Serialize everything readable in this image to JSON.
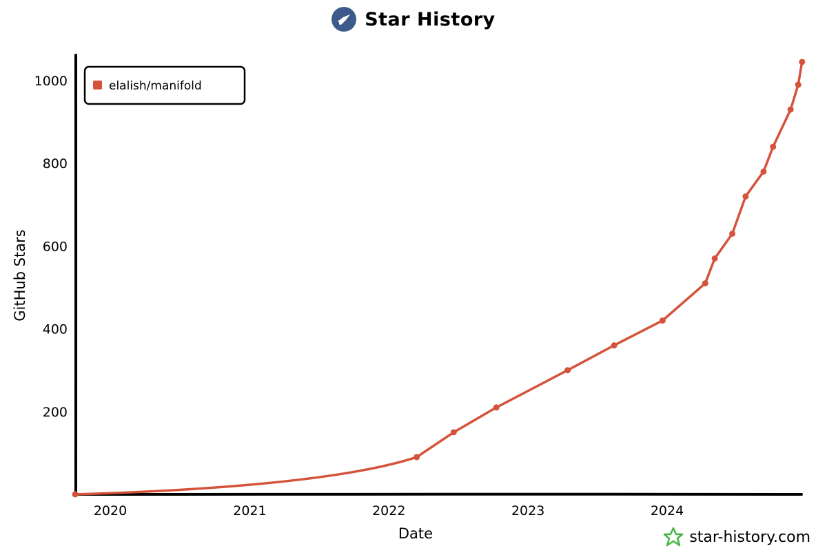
{
  "header": {
    "title": "Star History"
  },
  "watermark": {
    "text": "star-history.com"
  },
  "colors": {
    "series": "#d4533a",
    "axis": "#000000",
    "logo_bg": "#3c5a8a",
    "watermark_icon": "#44b544"
  },
  "icons": {
    "title_logo": "star-history-logo-icon",
    "watermark_logo": "star-outline-icon"
  },
  "chart_data": {
    "type": "line",
    "title": "Star History",
    "xlabel": "Date",
    "ylabel": "GitHub Stars",
    "x_ticks": [
      "2020",
      "2021",
      "2022",
      "2023",
      "2024"
    ],
    "y_ticks": [
      200,
      400,
      600,
      800,
      1000
    ],
    "ylim": [
      0,
      1000
    ],
    "grid": false,
    "legend_position": "top-left",
    "series": [
      {
        "name": "elalish/manifold",
        "points": [
          {
            "x": "2019-10-01",
            "y": 0
          },
          {
            "x": "2022-03-15",
            "y": 90
          },
          {
            "x": "2022-06-20",
            "y": 150
          },
          {
            "x": "2022-10-10",
            "y": 210
          },
          {
            "x": "2023-04-15",
            "y": 300
          },
          {
            "x": "2023-08-15",
            "y": 360
          },
          {
            "x": "2023-12-20",
            "y": 420
          },
          {
            "x": "2024-04-10",
            "y": 510
          },
          {
            "x": "2024-05-05",
            "y": 570
          },
          {
            "x": "2024-06-20",
            "y": 630
          },
          {
            "x": "2024-07-25",
            "y": 720
          },
          {
            "x": "2024-09-10",
            "y": 780
          },
          {
            "x": "2024-10-05",
            "y": 840
          },
          {
            "x": "2024-11-20",
            "y": 930
          },
          {
            "x": "2024-12-10",
            "y": 990
          },
          {
            "x": "2024-12-20",
            "y": 1045
          }
        ]
      }
    ]
  }
}
